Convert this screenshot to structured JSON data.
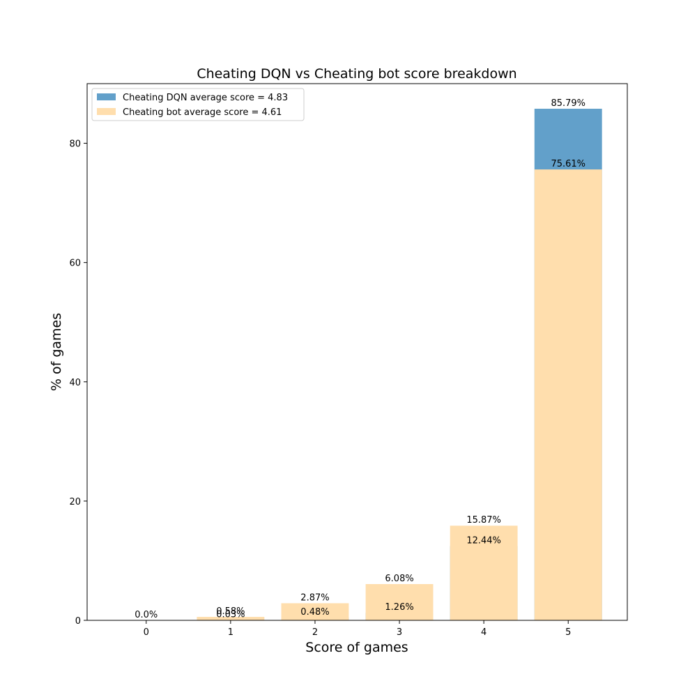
{
  "chart_data": {
    "type": "bar",
    "title": "Cheating DQN vs Cheating bot score breakdown",
    "xlabel": "Score of games",
    "ylabel": "% of games",
    "categories": [
      "0",
      "1",
      "2",
      "3",
      "4",
      "5"
    ],
    "ylim": [
      0,
      90
    ],
    "yticks": [
      0,
      20,
      40,
      60,
      80
    ],
    "grid": false,
    "legend_position": "top-left",
    "series": [
      {
        "name": "Cheating DQN average score = 4.83",
        "values": [
          0.0,
          0.03,
          0.48,
          1.26,
          12.44,
          85.79
        ],
        "labels": [
          "0.0%",
          "0.03%",
          "0.48%",
          "1.26%",
          "12.44%",
          "85.79%"
        ],
        "color": "#1f77b4",
        "opacity": 0.7
      },
      {
        "name": "Cheating bot average score = 4.61",
        "values": [
          0.0,
          0.58,
          2.87,
          6.08,
          15.87,
          75.61
        ],
        "labels": [
          "",
          "0.58%",
          "2.87%",
          "6.08%",
          "15.87%",
          "75.61%"
        ],
        "color": "#ffdead",
        "opacity": 1.0
      }
    ]
  }
}
